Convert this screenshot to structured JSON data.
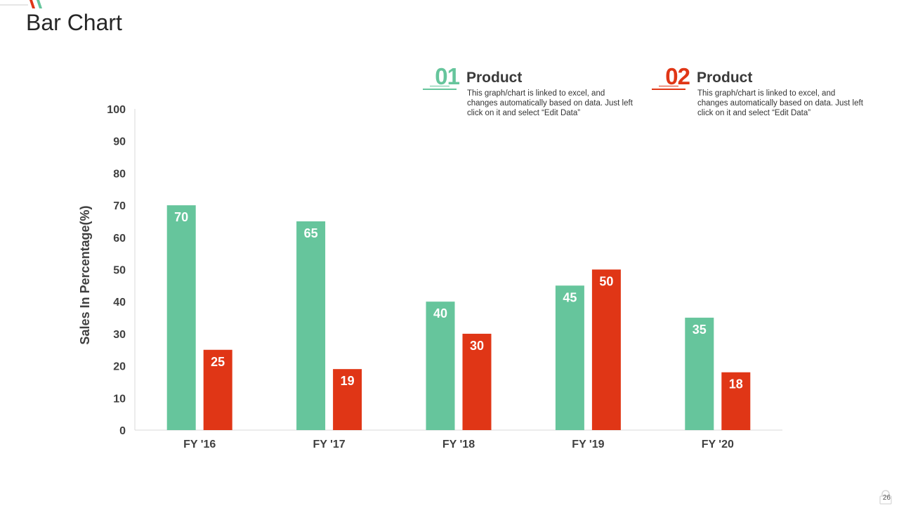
{
  "page": {
    "title": "Bar Chart",
    "page_number": "26"
  },
  "legend": [
    {
      "number": "01",
      "title": "Product",
      "description": "This graph/chart is linked to excel, and changes automatically based on data. Just left click on it and select “Edit Data”",
      "color": "#66c59c"
    },
    {
      "number": "02",
      "title": "Product",
      "description": "This graph/chart is linked to excel, and changes automatically based on data. Just left click on it and select “Edit Data”",
      "color": "#e03616"
    }
  ],
  "chart_data": {
    "type": "bar",
    "title": "",
    "xlabel": "",
    "ylabel": "Sales In Percentage(%)",
    "categories": [
      "FY '16",
      "FY '17",
      "FY '18",
      "FY '19",
      "FY '20"
    ],
    "series": [
      {
        "name": "",
        "values": [
          70,
          65,
          40,
          45,
          35
        ],
        "color": "#66c59c"
      },
      {
        "name": "",
        "values": [
          25,
          19,
          30,
          50,
          18
        ],
        "color": "#e03616"
      }
    ],
    "ylim": [
      0,
      100
    ],
    "yticks": [
      0,
      10,
      20,
      30,
      40,
      50,
      60,
      70,
      80,
      90,
      100
    ],
    "grid": false,
    "data_labels": true
  }
}
